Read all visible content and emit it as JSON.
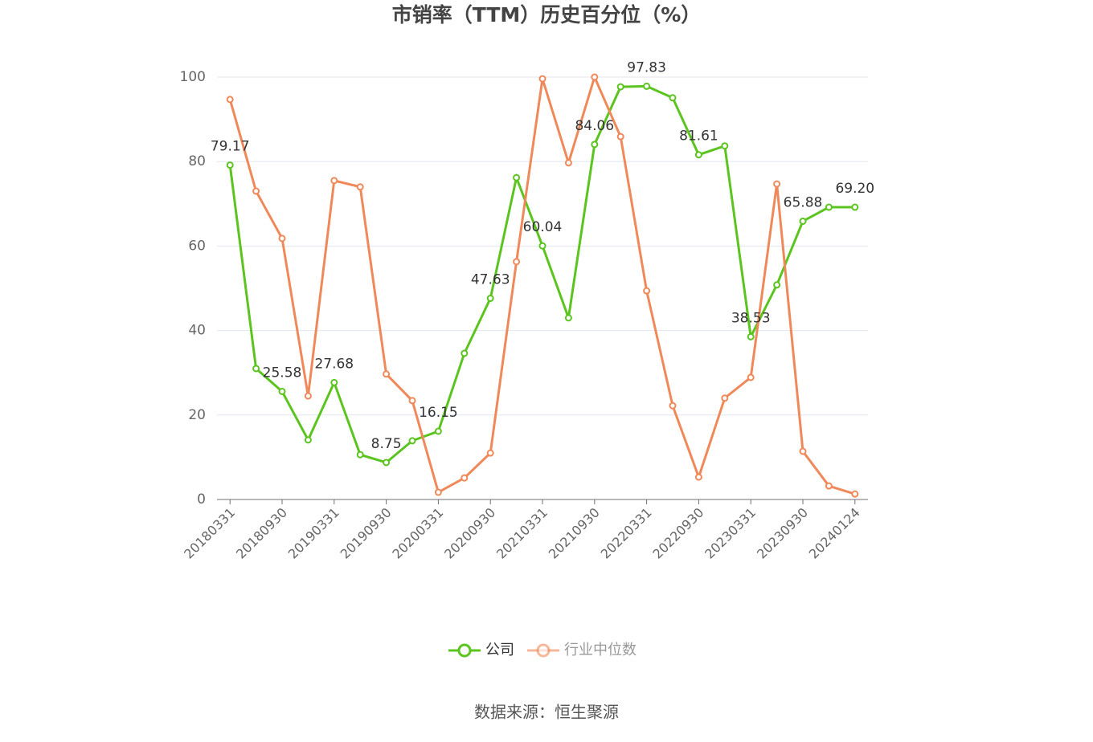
{
  "chart_data": {
    "type": "line",
    "title": "市销率（TTM）历史百分位（%）",
    "source": "数据来源：恒生聚源",
    "categories": [
      "20180331",
      null,
      "20180930",
      null,
      "20190331",
      null,
      "20190930",
      null,
      "20200331",
      null,
      "20200930",
      null,
      "20210331",
      null,
      "20210930",
      null,
      "20220331",
      null,
      "20220930",
      null,
      "20230331",
      null,
      "20230930",
      null,
      "20240124"
    ],
    "series": [
      {
        "name": "公司",
        "color": "#5bc41f",
        "values": [
          79.17,
          31.0,
          25.58,
          14.1,
          27.68,
          10.6,
          8.75,
          13.9,
          16.15,
          34.6,
          47.63,
          76.2,
          60.04,
          43.0,
          84.06,
          97.7,
          97.83,
          95.1,
          81.61,
          83.7,
          38.53,
          50.8,
          65.88,
          69.2,
          69.2
        ],
        "value_labels": [
          "79.17",
          null,
          "25.58",
          null,
          "27.68",
          null,
          "8.75",
          null,
          "16.15",
          null,
          "47.63",
          null,
          "60.04",
          null,
          "84.06",
          null,
          "97.83",
          null,
          "81.61",
          null,
          "38.53",
          null,
          "65.88",
          null,
          "69.20"
        ]
      },
      {
        "name": "行业中位数",
        "color": "#f0895a",
        "values": [
          94.7,
          73.0,
          61.8,
          24.5,
          75.5,
          74.0,
          29.7,
          23.4,
          1.7,
          5.1,
          11.0,
          56.3,
          99.6,
          79.7,
          100,
          85.9,
          49.4,
          22.2,
          5.3,
          24.0,
          28.9,
          74.7,
          11.4,
          3.2,
          1.3
        ]
      }
    ],
    "ylim": [
      0,
      100
    ],
    "yticks": [
      0,
      20,
      40,
      60,
      80,
      100
    ],
    "grid": true
  }
}
